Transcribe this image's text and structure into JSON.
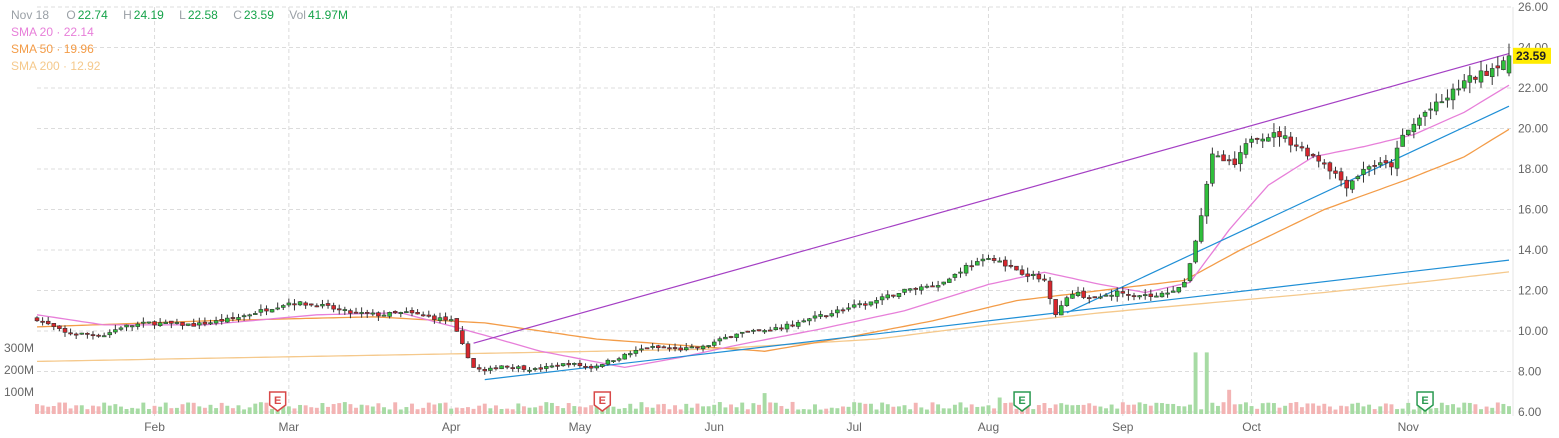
{
  "ohlc_header": {
    "date": "Nov 18",
    "open_label": "O",
    "open": "22.74",
    "high_label": "H",
    "high": "24.19",
    "low_label": "L",
    "low": "22.58",
    "close_label": "C",
    "close": "23.59",
    "vol_label": "Vol",
    "vol": "41.97M"
  },
  "moving_averages": [
    {
      "label": "SMA 20",
      "sep": "·",
      "value": "22.14",
      "color": "#e77fd9"
    },
    {
      "label": "SMA 50",
      "sep": "·",
      "value": "19.96",
      "color": "#f39c48"
    },
    {
      "label": "SMA 200",
      "sep": "·",
      "value": "12.92",
      "color": "#f5c98c"
    }
  ],
  "last_price_badge": "23.59",
  "colors": {
    "up": "#2fbf3b",
    "down": "#d7262d",
    "vol_up": "#a7dba4",
    "vol_down": "#f3b4b4",
    "sma20": "#e77fd9",
    "sma50": "#f39c48",
    "sma200": "#f5c98c",
    "trend_upper": "#a43fc4",
    "trend_lower": "#1f8fd6",
    "badge": "#ffeb00",
    "earnings": "#d84848",
    "earnings_green": "#2a9a50"
  },
  "chart_data": {
    "type": "candlestick",
    "x_range": [
      "Jan",
      "Nov 18"
    ],
    "ylim": [
      6,
      26
    ],
    "y_ticks": [
      "26.00",
      "24.00",
      "22.00",
      "20.00",
      "18.00",
      "16.00",
      "14.00",
      "12.00",
      "10.00",
      "8.00",
      "6.00"
    ],
    "y_tick_values": [
      26,
      24,
      22,
      20,
      18,
      16,
      14,
      12,
      10,
      8,
      6
    ],
    "x_ticks": [
      "Feb",
      "Mar",
      "Apr",
      "May",
      "Jun",
      "Jul",
      "Aug",
      "Sep",
      "Oct",
      "Nov"
    ],
    "x_tick_index": [
      21,
      45,
      74,
      97,
      121,
      146,
      170,
      194,
      217,
      245
    ],
    "volume_ticks": [
      "300M",
      "200M",
      "100M"
    ],
    "volume_tick_values": [
      300,
      200,
      100
    ],
    "grid": true,
    "last_index": 263,
    "price_anchors": [
      [
        0,
        10.6
      ],
      [
        5,
        9.9
      ],
      [
        12,
        9.8
      ],
      [
        15,
        10.2
      ],
      [
        20,
        10.4
      ],
      [
        28,
        10.3
      ],
      [
        35,
        10.6
      ],
      [
        40,
        11.0
      ],
      [
        45,
        11.4
      ],
      [
        50,
        11.3
      ],
      [
        56,
        10.9
      ],
      [
        61,
        10.8
      ],
      [
        66,
        10.9
      ],
      [
        70,
        10.7
      ],
      [
        74,
        10.5
      ],
      [
        76,
        9.3
      ],
      [
        78,
        8.2
      ],
      [
        80,
        8.0
      ],
      [
        83,
        8.3
      ],
      [
        89,
        8.1
      ],
      [
        95,
        8.4
      ],
      [
        99,
        8.2
      ],
      [
        103,
        8.6
      ],
      [
        109,
        9.2
      ],
      [
        115,
        9.1
      ],
      [
        119,
        9.2
      ],
      [
        125,
        9.9
      ],
      [
        131,
        10.0
      ],
      [
        137,
        10.5
      ],
      [
        143,
        11.0
      ],
      [
        149,
        11.4
      ],
      [
        155,
        12.0
      ],
      [
        162,
        12.4
      ],
      [
        166,
        13.2
      ],
      [
        171,
        13.6
      ],
      [
        176,
        12.9
      ],
      [
        180,
        12.5
      ],
      [
        182,
        10.9
      ],
      [
        185,
        11.9
      ],
      [
        189,
        11.6
      ],
      [
        193,
        11.9
      ],
      [
        197,
        11.8
      ],
      [
        200,
        11.7
      ],
      [
        205,
        12.3
      ],
      [
        208,
        15.6
      ],
      [
        210,
        18.7
      ],
      [
        214,
        18.2
      ],
      [
        217,
        19.6
      ],
      [
        222,
        19.7
      ],
      [
        227,
        18.8
      ],
      [
        230,
        18.3
      ],
      [
        234,
        17.2
      ],
      [
        238,
        18.2
      ],
      [
        242,
        18.2
      ],
      [
        244,
        19.6
      ],
      [
        248,
        20.8
      ],
      [
        251,
        21.3
      ],
      [
        255,
        22.3
      ],
      [
        259,
        22.8
      ],
      [
        263,
        23.59
      ]
    ],
    "sma20_anchors": [
      [
        0,
        10.8
      ],
      [
        12,
        10.3
      ],
      [
        30,
        10.3
      ],
      [
        50,
        10.8
      ],
      [
        65,
        10.9
      ],
      [
        76,
        10.1
      ],
      [
        90,
        9.0
      ],
      [
        105,
        8.2
      ],
      [
        115,
        8.7
      ],
      [
        125,
        9.3
      ],
      [
        140,
        10.1
      ],
      [
        155,
        11.0
      ],
      [
        170,
        12.3
      ],
      [
        180,
        12.9
      ],
      [
        190,
        12.3
      ],
      [
        198,
        11.9
      ],
      [
        206,
        12.4
      ],
      [
        213,
        15.0
      ],
      [
        220,
        17.2
      ],
      [
        228,
        18.6
      ],
      [
        237,
        19.1
      ],
      [
        246,
        19.7
      ],
      [
        255,
        20.8
      ],
      [
        263,
        22.14
      ]
    ],
    "sma50_anchors": [
      [
        0,
        10.2
      ],
      [
        30,
        10.5
      ],
      [
        60,
        10.7
      ],
      [
        80,
        10.4
      ],
      [
        100,
        9.6
      ],
      [
        115,
        9.3
      ],
      [
        130,
        9.0
      ],
      [
        145,
        9.7
      ],
      [
        160,
        10.5
      ],
      [
        175,
        11.5
      ],
      [
        190,
        12.0
      ],
      [
        205,
        12.5
      ],
      [
        215,
        14.0
      ],
      [
        230,
        16.0
      ],
      [
        245,
        17.5
      ],
      [
        255,
        18.6
      ],
      [
        263,
        19.96
      ]
    ],
    "sma200_anchors": [
      [
        0,
        8.5
      ],
      [
        40,
        8.7
      ],
      [
        80,
        8.9
      ],
      [
        120,
        9.1
      ],
      [
        150,
        9.6
      ],
      [
        170,
        10.3
      ],
      [
        190,
        10.9
      ],
      [
        210,
        11.4
      ],
      [
        230,
        11.9
      ],
      [
        250,
        12.5
      ],
      [
        263,
        12.92
      ]
    ],
    "trendlines": [
      {
        "name": "upper",
        "from": [
          78,
          9.4
        ],
        "to": [
          263,
          23.7
        ]
      },
      {
        "name": "lower_steep",
        "from": [
          184,
          10.9
        ],
        "to": [
          263,
          21.1
        ]
      },
      {
        "name": "lower_flat",
        "from": [
          80,
          7.6
        ],
        "to": [
          263,
          13.5
        ]
      }
    ],
    "earnings_markers": [
      {
        "label": "E",
        "index": 43,
        "status": "red"
      },
      {
        "label": "E",
        "index": 101,
        "status": "red"
      },
      {
        "label": "E",
        "index": 176,
        "status": "green"
      },
      {
        "label": "E",
        "index": 248,
        "status": "green"
      }
    ],
    "volume_spikes": [
      [
        207,
        280
      ],
      [
        209,
        280
      ],
      [
        213,
        110
      ],
      [
        130,
        95
      ],
      [
        172,
        75
      ]
    ]
  }
}
